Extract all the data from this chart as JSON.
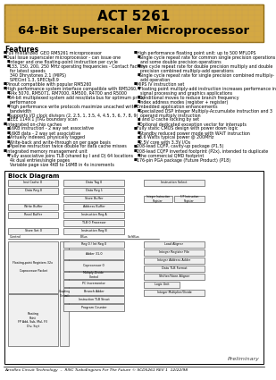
{
  "title_line1": "ACT 5261",
  "title_line2": "64-Bit Superscaler Microprocessor",
  "header_bg": "#d4a843",
  "header_border": "#8b6914",
  "page_bg": "#ffffff",
  "features_title": "Features",
  "left_items": [
    [
      "Full militarized  GEO RM5261 microprocessor",
      0
    ],
    [
      "Dual Issue superscaler microprocessor - can issue one",
      0
    ],
    [
      "integer and one floating-point instruction per cycle",
      1
    ],
    [
      "133, 150, 200, 250 MHz operating frequencies - Contact Factory",
      1
    ],
    [
      "for latest speeds",
      2
    ],
    [
      "340 Dhrystones 2.1 (MIPS)",
      2
    ],
    [
      "SPECint 1.3, SPECfp8.9",
      2
    ],
    [
      "Pinout compatible with popular RM5260",
      0
    ],
    [
      "High performance system interface compatible with RM5260,",
      0
    ],
    [
      "R4x 5070, RM5071, RM7000, RM500, R4700 and R5000",
      1
    ],
    [
      "64-bit multiplexed system add ress/data bus for optimum price/",
      1
    ],
    [
      "performance",
      2
    ],
    [
      "High performance write protocols maximize uncached write",
      1
    ],
    [
      "bandwidth",
      2
    ],
    [
      "Supports I/O clock divisors (2, 2.5, 1, 3.5, 4, 4.5, 5, 6, 7, 8, 9)",
      1
    ],
    [
      "IEEE 1149.1 JTAG boundary scan",
      1
    ],
    [
      "Integrated on-chip caches",
      0
    ],
    [
      "16KB instruction - 2 way set associative",
      1
    ],
    [
      "16KB data - 2 way set associative",
      1
    ],
    [
      "Virtually indexed, physically tagged",
      1
    ],
    [
      "Write-back and write-through on per page basis",
      1
    ],
    [
      "Pipeline restruction twice double for data cache misses",
      1
    ],
    [
      "Integrated memory management unit",
      0
    ],
    [
      "Fully associative joins TLB (shared by I and D) 64 locations",
      1
    ],
    [
      "4k dual entries/single pages",
      2
    ],
    [
      "Variable page size 4KB to 16MB in 4x increments",
      2
    ]
  ],
  "right_items": [
    [
      "High performance floating point unit: up to 500 MFLOPS",
      0
    ],
    [
      "Single cycle repeat rate for common single precision operations",
      1
    ],
    [
      "and some double precision operations",
      2
    ],
    [
      "Five cycle repeat rate for double precision multiply and double",
      1
    ],
    [
      "precision combined multiply-add operations",
      2
    ],
    [
      "Single cycle repeat rate for single precision combined multiply-",
      1
    ],
    [
      "add operation",
      2
    ],
    [
      "MIPS IV instruction set",
      0
    ],
    [
      "Floating point multiply-add instruction increases performance in",
      1
    ],
    [
      "signal processing and graphics applications",
      2
    ],
    [
      "Conditional moves to reduce branch frequency",
      1
    ],
    [
      "Index address modes (register + register)",
      1
    ],
    [
      "Embedded application enhancements",
      0
    ],
    [
      "Specialized DSP integer Multiply-Accumulate instruction and 3",
      1
    ],
    [
      "operand multiply instruction",
      2
    ],
    [
      "I and D cache locking by set",
      1
    ],
    [
      "Optional dedicated exception vector for interrupts",
      1
    ],
    [
      "Fully static CMOS design with power down logic",
      0
    ],
    [
      "Standby reduced power mode with WAIT instruction",
      1
    ],
    [
      "3.6 Watts typical power @ 200MHz",
      1
    ],
    [
      "2.5V core with 3.3V I/Os",
      1
    ],
    [
      "208-lead CQFP, cavity-up package (P1.5)",
      0
    ],
    [
      "208-lead CQFP inverted footprint (P2x), intended to duplicate",
      0
    ],
    [
      "the commercial QMD footprint",
      1
    ],
    [
      "176-pin PGA package (Future Product) (P18)",
      0
    ]
  ],
  "block_diagram_title": "Block Diagram",
  "footer_text": "Aeroflex Circuit Technology  –  RISC TurboEngines For The Future © SCD5261 REV 1  12/22/98",
  "preliminary_text": "Preliminary",
  "grid_color": "#c8a050",
  "text_color": "#000000"
}
